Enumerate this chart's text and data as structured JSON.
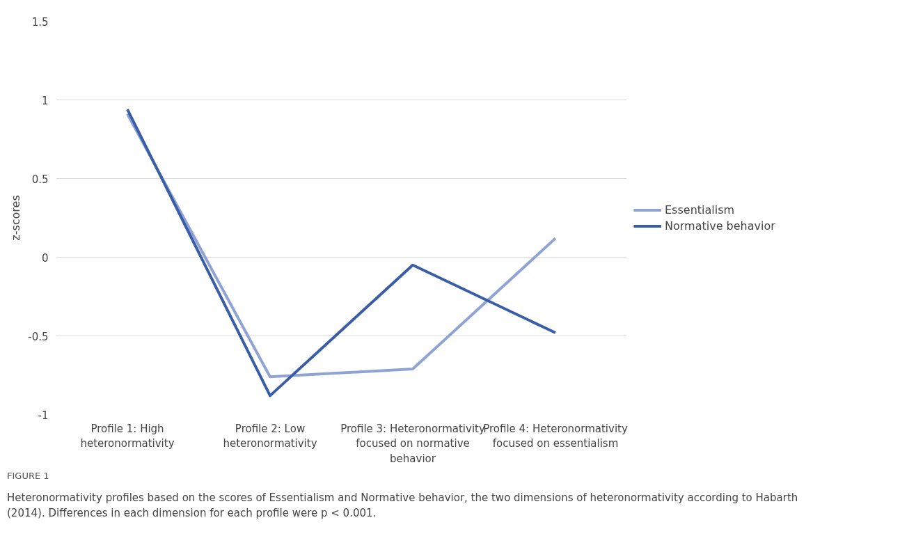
{
  "chart_data": {
    "type": "line",
    "ylabel": "z-scores",
    "categories": [
      "Profile 1: High heteronormativity",
      "Profile 2: Low heteronormativity",
      "Profile 3: Heteronormativity focused on normative behavior",
      "Profile 4: Heteronormativity focused on essentialism"
    ],
    "series": [
      {
        "name": "Essentialism",
        "color": "#8fa4d4",
        "values": [
          0.91,
          -0.76,
          -0.71,
          0.12
        ]
      },
      {
        "name": "Normative behavior",
        "color": "#3a5da8",
        "values": [
          0.94,
          -0.88,
          -0.05,
          -0.48
        ]
      }
    ],
    "ylim": [
      -1,
      1.5
    ],
    "yticks": [
      -1,
      {
        "value": -0.5,
        "label": "-0.5"
      },
      0,
      0.5,
      1,
      1.5
    ],
    "grid": "y",
    "legend": "right",
    "marker": "none",
    "line_style": "solid",
    "annotations": [
      "FIGURE 1",
      "Heteronormativity profiles based on the scores of Essentialism and Normative behavior, the two dimensions of heteronormativity according to Habarth (2014). Differences in each dimension for each profile were p < 0.001."
    ]
  }
}
